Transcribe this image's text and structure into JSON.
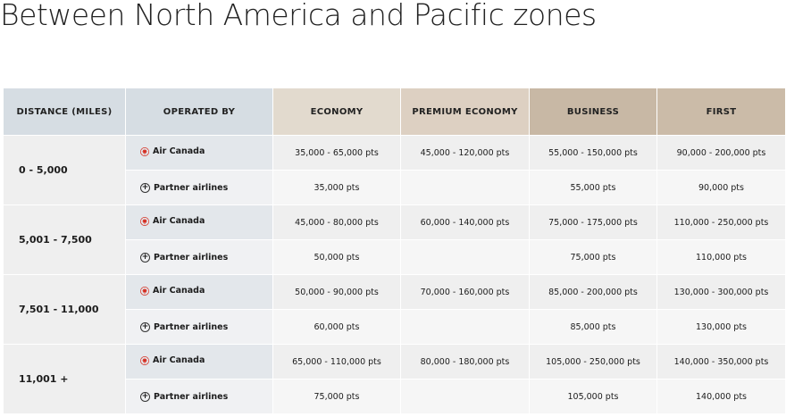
{
  "title": "Between North America and Pacific zones",
  "headers": {
    "distance": "DISTANCE (MILES)",
    "operated_by": "OPERATED BY",
    "economy": "ECONOMY",
    "premium_economy": "PREMIUM ECONOMY",
    "business": "BUSINESS",
    "first": "FIRST"
  },
  "icons": {
    "air_canada": "maple-leaf-icon",
    "partner": "plus-circle-icon"
  },
  "colors": {
    "maple_leaf": "#d52b1e"
  },
  "rows": [
    {
      "distance": "0 - 5,000",
      "air_canada": {
        "label": "Air Canada",
        "economy": "35,000 - 65,000 pts",
        "premium_economy": "45,000 - 120,000 pts",
        "business": "55,000 - 150,000 pts",
        "first": "90,000 - 200,000 pts"
      },
      "partner": {
        "label": "Partner airlines",
        "economy": "35,000 pts",
        "premium_economy": "",
        "business": "55,000 pts",
        "first": "90,000 pts"
      }
    },
    {
      "distance": "5,001 - 7,500",
      "air_canada": {
        "label": "Air Canada",
        "economy": "45,000 - 80,000 pts",
        "premium_economy": "60,000 - 140,000 pts",
        "business": "75,000 - 175,000 pts",
        "first": "110,000 - 250,000 pts"
      },
      "partner": {
        "label": "Partner airlines",
        "economy": "50,000 pts",
        "premium_economy": "",
        "business": "75,000 pts",
        "first": "110,000 pts"
      }
    },
    {
      "distance": "7,501 - 11,000",
      "air_canada": {
        "label": "Air Canada",
        "economy": "50,000 - 90,000 pts",
        "premium_economy": "70,000 - 160,000 pts",
        "business": "85,000 - 200,000 pts",
        "first": "130,000 - 300,000 pts"
      },
      "partner": {
        "label": "Partner airlines",
        "economy": "60,000 pts",
        "premium_economy": "",
        "business": "85,000 pts",
        "first": "130,000 pts"
      }
    },
    {
      "distance": "11,001 +",
      "air_canada": {
        "label": "Air Canada",
        "economy": "65,000 - 110,000 pts",
        "premium_economy": "80,000 - 180,000 pts",
        "business": "105,000 - 250,000 pts",
        "first": "140,000 - 350,000 pts"
      },
      "partner": {
        "label": "Partner airlines",
        "economy": "75,000 pts",
        "premium_economy": "",
        "business": "105,000 pts",
        "first": "140,000 pts"
      }
    }
  ]
}
